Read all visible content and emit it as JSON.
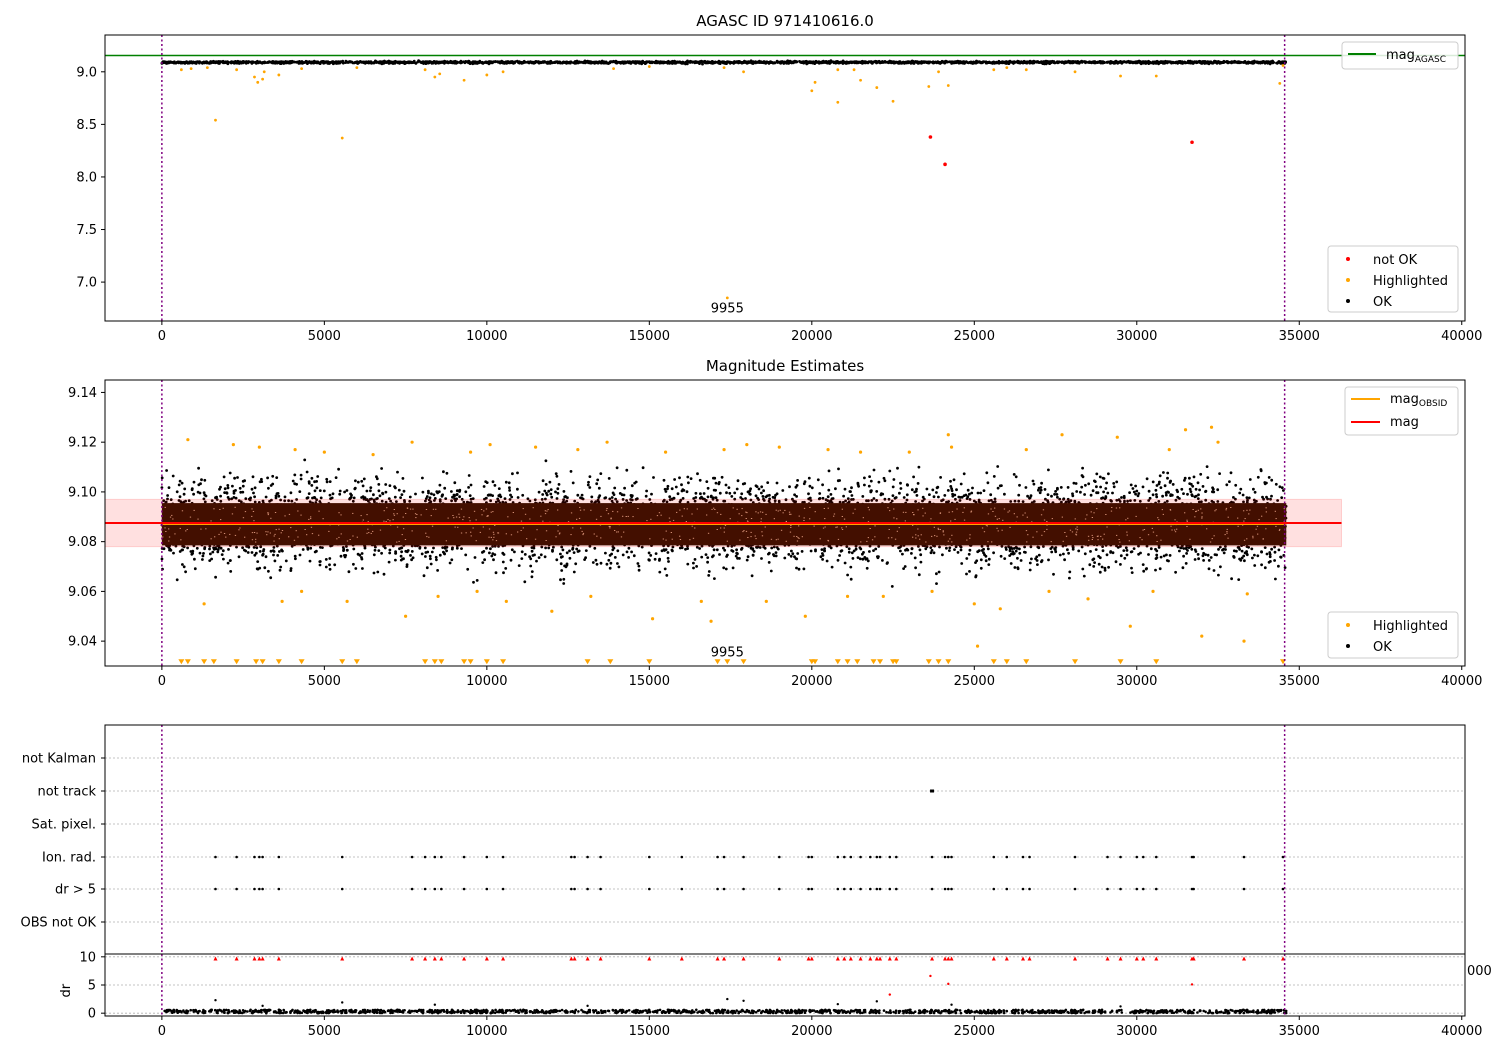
{
  "chart_data": [
    {
      "type": "scatter",
      "title": "AGASC ID 971410616.0",
      "xlabel": "",
      "ylabel": "",
      "xlim": [
        -1750,
        40100
      ],
      "ylim": [
        6.63,
        9.35
      ],
      "xticks": [
        0,
        5000,
        10000,
        15000,
        20000,
        25000,
        30000,
        35000,
        40000
      ],
      "yticks": [
        7.0,
        7.5,
        8.0,
        8.5,
        9.0
      ],
      "vlines": [
        0,
        34550
      ],
      "hline": {
        "name": "mag_AGASC",
        "value": 9.155,
        "color": "#008000"
      },
      "annotation": {
        "text": "9955",
        "x": 17400,
        "y": 6.75
      },
      "legend": {
        "position": "top-right",
        "items": [
          {
            "label": "mag",
            "sub": "AGASC",
            "color": "#008000"
          }
        ]
      },
      "legend2": {
        "position": "bottom-right",
        "items": [
          {
            "label": "not OK",
            "color": "#ff0000"
          },
          {
            "label": "Highlighted",
            "color": "#ffa500"
          },
          {
            "label": "OK",
            "color": "#000000"
          }
        ]
      },
      "series": [
        {
          "name": "not OK",
          "color": "#ff0000",
          "points": [
            [
              23650,
              8.38
            ],
            [
              24100,
              8.12
            ],
            [
              31700,
              8.33
            ]
          ]
        },
        {
          "name": "Highlighted",
          "color": "#ffa500",
          "points": [
            [
              600,
              9.02
            ],
            [
              900,
              9.03
            ],
            [
              1400,
              9.04
            ],
            [
              1650,
              8.54
            ],
            [
              2300,
              9.02
            ],
            [
              2850,
              8.95
            ],
            [
              2950,
              8.9
            ],
            [
              3100,
              8.93
            ],
            [
              3150,
              9.0
            ],
            [
              3600,
              8.97
            ],
            [
              4300,
              9.03
            ],
            [
              5550,
              8.37
            ],
            [
              6000,
              9.04
            ],
            [
              8100,
              9.02
            ],
            [
              8400,
              8.95
            ],
            [
              8550,
              8.98
            ],
            [
              9300,
              8.92
            ],
            [
              10000,
              8.97
            ],
            [
              10500,
              9.0
            ],
            [
              13900,
              9.03
            ],
            [
              15000,
              9.05
            ],
            [
              17300,
              9.04
            ],
            [
              17400,
              6.85
            ],
            [
              17900,
              9.0
            ],
            [
              20000,
              8.82
            ],
            [
              20100,
              8.9
            ],
            [
              20800,
              9.02
            ],
            [
              20800,
              8.71
            ],
            [
              21300,
              9.02
            ],
            [
              21500,
              8.92
            ],
            [
              22000,
              8.85
            ],
            [
              22500,
              8.72
            ],
            [
              23600,
              8.86
            ],
            [
              23900,
              9.0
            ],
            [
              24200,
              8.87
            ],
            [
              25600,
              9.02
            ],
            [
              26000,
              9.04
            ],
            [
              26600,
              9.02
            ],
            [
              28100,
              9.0
            ],
            [
              29500,
              8.96
            ],
            [
              30600,
              8.96
            ],
            [
              34400,
              8.89
            ],
            [
              34500,
              9.06
            ]
          ]
        }
      ],
      "ok_band": {
        "name": "OK",
        "color": "#000000",
        "x": [
          0,
          34600
        ],
        "y": [
          9.07,
          9.11
        ]
      }
    },
    {
      "type": "scatter",
      "title": "Magnitude Estimates",
      "xlabel": "",
      "ylabel": "",
      "xlim": [
        -1750,
        40100
      ],
      "ylim": [
        9.03,
        9.145
      ],
      "xticks": [
        0,
        5000,
        10000,
        15000,
        20000,
        25000,
        30000,
        35000,
        40000
      ],
      "yticks": [
        9.04,
        9.06,
        9.08,
        9.1,
        9.12,
        9.14
      ],
      "vlines": [
        0,
        34550
      ],
      "mag": {
        "value": 9.0875,
        "band": [
          9.078,
          9.097
        ],
        "color": "#ff0000",
        "x": [
          -1750,
          36300
        ]
      },
      "mag_obsid": {
        "value": 9.0875,
        "color": "#ffa500",
        "x": [
          0,
          34600
        ]
      },
      "annotation": {
        "text": "9955",
        "x": 17400,
        "y": 9.035
      },
      "legend": {
        "position": "top-right",
        "items": [
          {
            "label": "mag",
            "sub": "OBSID",
            "color": "#ffa500"
          },
          {
            "label": "mag",
            "sub": "",
            "color": "#ff0000"
          }
        ]
      },
      "legend2": {
        "position": "bottom-right",
        "items": [
          {
            "label": "Highlighted",
            "color": "#ffa500"
          },
          {
            "label": "OK",
            "color": "#000000"
          }
        ]
      },
      "series": [
        {
          "name": "Highlighted",
          "color": "#ffa500",
          "points": [
            [
              800,
              9.121
            ],
            [
              1300,
              9.055
            ],
            [
              2200,
              9.119
            ],
            [
              3000,
              9.118
            ],
            [
              3700,
              9.056
            ],
            [
              4100,
              9.117
            ],
            [
              4300,
              9.06
            ],
            [
              5000,
              9.116
            ],
            [
              5700,
              9.056
            ],
            [
              6500,
              9.115
            ],
            [
              7500,
              9.05
            ],
            [
              7700,
              9.12
            ],
            [
              8500,
              9.058
            ],
            [
              9500,
              9.116
            ],
            [
              9700,
              9.06
            ],
            [
              10100,
              9.119
            ],
            [
              10600,
              9.056
            ],
            [
              11500,
              9.118
            ],
            [
              12000,
              9.052
            ],
            [
              12800,
              9.117
            ],
            [
              13200,
              9.058
            ],
            [
              13700,
              9.12
            ],
            [
              15100,
              9.049
            ],
            [
              15500,
              9.116
            ],
            [
              16600,
              9.056
            ],
            [
              16900,
              9.048
            ],
            [
              17300,
              9.117
            ],
            [
              18000,
              9.119
            ],
            [
              18600,
              9.056
            ],
            [
              19000,
              9.118
            ],
            [
              19800,
              9.05
            ],
            [
              20500,
              9.117
            ],
            [
              21100,
              9.058
            ],
            [
              21500,
              9.116
            ],
            [
              22200,
              9.058
            ],
            [
              23000,
              9.116
            ],
            [
              23700,
              9.06
            ],
            [
              24200,
              9.123
            ],
            [
              24300,
              9.118
            ],
            [
              25000,
              9.055
            ],
            [
              25100,
              9.038
            ],
            [
              25800,
              9.053
            ],
            [
              26600,
              9.117
            ],
            [
              27300,
              9.06
            ],
            [
              27700,
              9.123
            ],
            [
              28500,
              9.057
            ],
            [
              29400,
              9.122
            ],
            [
              29800,
              9.046
            ],
            [
              30500,
              9.06
            ],
            [
              31000,
              9.117
            ],
            [
              31500,
              9.125
            ],
            [
              32000,
              9.042
            ],
            [
              32300,
              9.126
            ],
            [
              32500,
              9.12
            ],
            [
              33300,
              9.04
            ],
            [
              33400,
              9.059
            ]
          ]
        },
        {
          "name": "Highlighted-below",
          "color": "#ffa500",
          "marker": "triangle-down",
          "y": 9.0315,
          "x": [
            600,
            800,
            1300,
            1600,
            2300,
            2900,
            3100,
            3600,
            4300,
            5550,
            6000,
            8100,
            8400,
            8600,
            9300,
            9500,
            10000,
            10500,
            13100,
            13800,
            15000,
            17100,
            17400,
            17900,
            20000,
            20100,
            20800,
            21100,
            21400,
            21900,
            22100,
            22500,
            22600,
            23600,
            23900,
            24200,
            25600,
            26000,
            26600,
            28100,
            29500,
            30600,
            34500
          ]
        }
      ],
      "ok_band": {
        "name": "OK",
        "color": "#000000",
        "x": [
          0,
          34600
        ],
        "y": [
          9.062,
          9.113
        ]
      }
    },
    {
      "type": "scatter",
      "title": "",
      "xlim": [
        -1750,
        40100
      ],
      "categories": [
        "not Kalman",
        "not track",
        "Sat. pixel.",
        "Ion. rad.",
        "dr > 5",
        "OBS not OK"
      ],
      "vlines": [
        0,
        34550
      ],
      "not_track": [
        23700
      ],
      "flag_x": [
        1650,
        2300,
        2850,
        3000,
        3100,
        3600,
        5550,
        7700,
        8100,
        8400,
        8600,
        9300,
        10000,
        10500,
        12600,
        12700,
        13100,
        13500,
        15000,
        16000,
        17100,
        17300,
        17900,
        19000,
        19900,
        20000,
        20800,
        21000,
        21200,
        21500,
        21800,
        22000,
        22100,
        22400,
        22600,
        23700,
        24100,
        24200,
        24300,
        25600,
        26000,
        26500,
        26700,
        28100,
        29100,
        29500,
        30000,
        30200,
        30600,
        31700,
        31750,
        33300,
        34500
      ]
    },
    {
      "type": "scatter",
      "title": "",
      "ylabel": "dr",
      "xlim": [
        -1750,
        40100
      ],
      "ylim": [
        -0.5,
        10.5
      ],
      "xticks": [
        0,
        5000,
        10000,
        15000,
        20000,
        25000,
        30000,
        35000,
        40000
      ],
      "yticks": [
        0,
        5,
        10
      ],
      "vlines": [
        0,
        34550
      ],
      "overlap_label": "000",
      "clipped_y": 9.7,
      "outliers": [
        [
          1650,
          2.3
        ],
        [
          5550,
          1.9
        ],
        [
          17400,
          2.5
        ],
        [
          17900,
          2.2
        ],
        [
          20800,
          1.6
        ],
        [
          22000,
          2.1
        ],
        [
          22400,
          3.3
        ],
        [
          23650,
          6.6
        ],
        [
          24200,
          5.2
        ],
        [
          31700,
          5.1
        ],
        [
          24300,
          1.5
        ],
        [
          8400,
          1.5
        ],
        [
          3100,
          1.3
        ],
        [
          29500,
          1.2
        ],
        [
          13100,
          1.3
        ]
      ],
      "base": {
        "x": [
          0,
          34600
        ],
        "y": [
          0,
          0.6
        ]
      }
    }
  ]
}
